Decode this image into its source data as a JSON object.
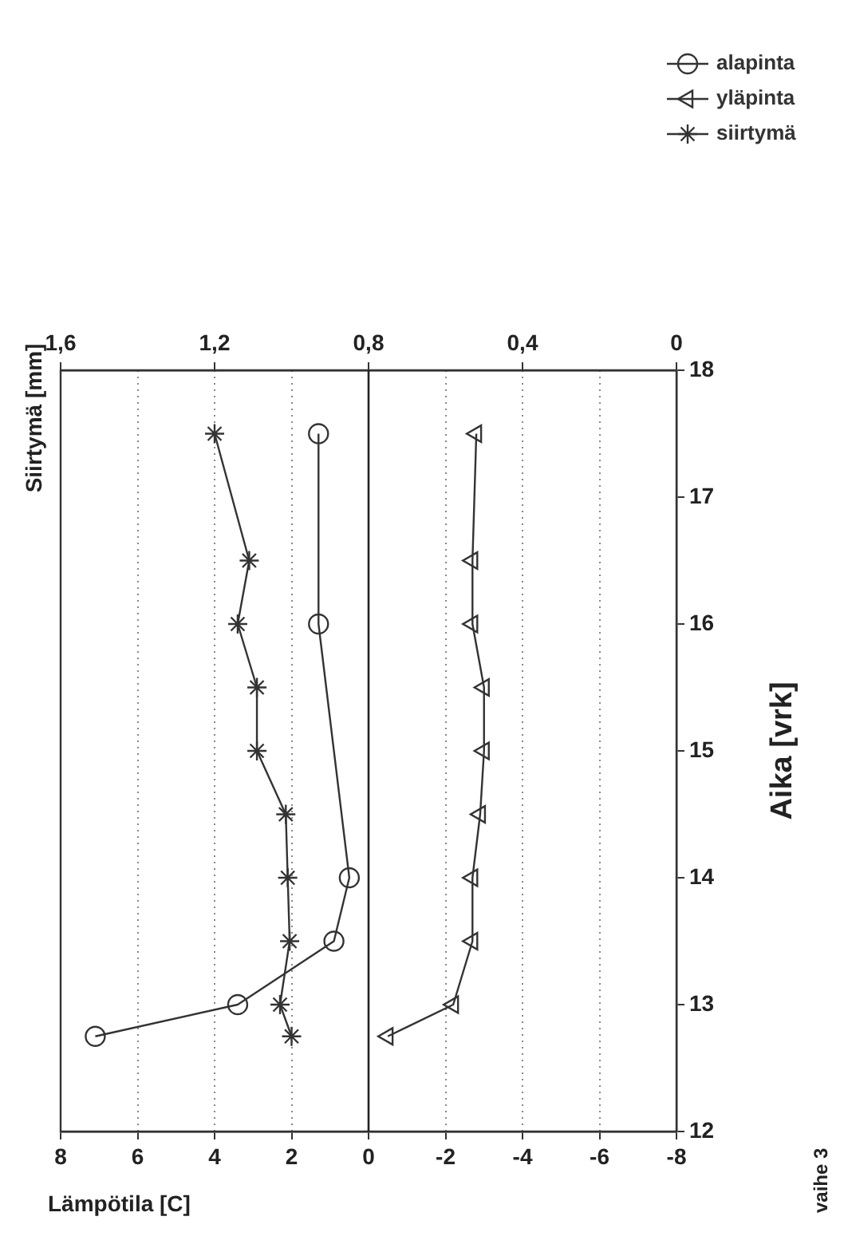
{
  "chart_data": {
    "type": "line",
    "xlabel": "Lämpötila [C]",
    "x2label": "Siirtymä [mm]",
    "ylabel": "Aika [vrk]",
    "annotations": [
      "vaihe 3"
    ],
    "xlim": [
      8,
      -8
    ],
    "xticks": [
      8,
      6,
      4,
      2,
      0,
      -2,
      -4,
      -6,
      -8
    ],
    "x2lim": [
      1.6,
      0
    ],
    "x2ticks": [
      {
        "value": 1.6,
        "label": "1,6"
      },
      {
        "value": 1.2,
        "label": "1,2"
      },
      {
        "value": 0.8,
        "label": "0,8"
      },
      {
        "value": 0.4,
        "label": "0,4"
      },
      0
    ],
    "ylim": [
      12,
      18
    ],
    "yticks": [
      12,
      13,
      14,
      15,
      16,
      17,
      18
    ],
    "grid": "x",
    "legend": "top right",
    "line_style": "solid",
    "ref_lines": [
      {
        "axis": "x",
        "value": 0,
        "color": "#222222"
      }
    ],
    "series": [
      {
        "name": "alapinta",
        "color": "#333333",
        "marker": "circle",
        "x": [
          7.1,
          3.4,
          0.9,
          0.5,
          1.3,
          1.3
        ],
        "values": [
          12.75,
          13,
          13.5,
          14,
          16,
          17.5
        ]
      },
      {
        "name": "yläpinta",
        "color": "#333333",
        "marker": "triangle",
        "x": [
          -0.5,
          -2.2,
          -2.7,
          -2.7,
          -2.9,
          -3.0,
          -3.0,
          -2.7,
          -2.7,
          -2.8
        ],
        "values": [
          12.75,
          13,
          13.5,
          14,
          14.5,
          15,
          15.5,
          16,
          16.5,
          17.5
        ]
      },
      {
        "name": "siirtymä",
        "color": "#333333",
        "marker": "cross",
        "axis": "x2",
        "x": [
          1.0,
          1.03,
          1.005,
          1.01,
          1.015,
          1.09,
          1.09,
          1.14,
          1.11,
          1.2
        ],
        "values": [
          12.75,
          13,
          13.5,
          14,
          14.5,
          15,
          15.5,
          16,
          16.5,
          17.5
        ]
      }
    ]
  }
}
